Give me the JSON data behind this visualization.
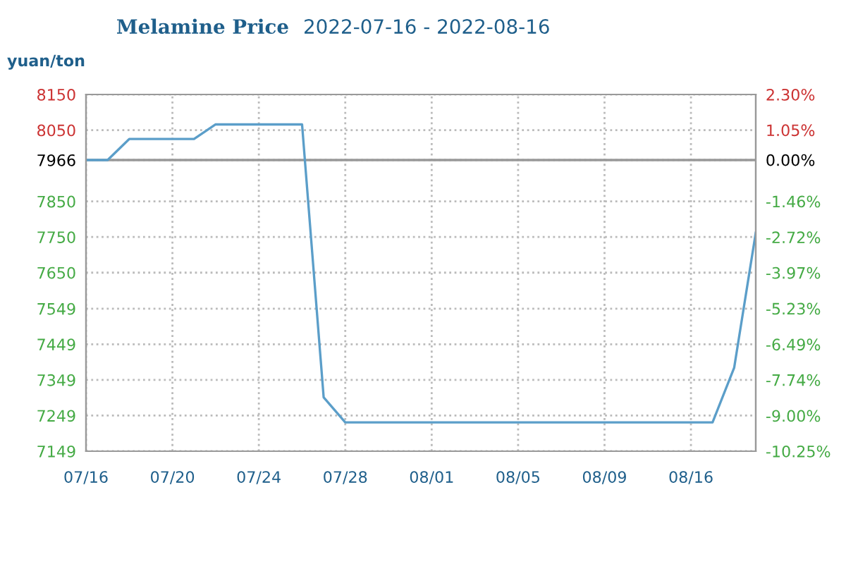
{
  "chart_data": {
    "type": "line",
    "title": "Melamine Price",
    "subtitle": "2022-07-16 - 2022-08-16",
    "ylabel": "yuan/ton",
    "categories": [
      "07/16",
      null,
      null,
      null,
      "07/20",
      null,
      null,
      null,
      "07/24",
      null,
      null,
      null,
      "07/28",
      null,
      null,
      null,
      "08/01",
      null,
      null,
      null,
      "08/05",
      null,
      null,
      null,
      "08/09",
      null,
      null,
      null,
      "08/16",
      null,
      null,
      null
    ],
    "series": [
      {
        "color": "#5b9ec9",
        "values": [
          7966,
          7966,
          8025,
          8025,
          8025,
          8025,
          8066,
          8066,
          8066,
          8066,
          8066,
          7300,
          7230,
          7230,
          7230,
          7230,
          7230,
          7230,
          7230,
          7230,
          7230,
          7230,
          7230,
          7230,
          7230,
          7230,
          7230,
          7230,
          7230,
          7230,
          7383,
          7762
        ]
      }
    ],
    "ylim": [
      7149,
      8150
    ],
    "yticks": [
      7149,
      7249,
      7349,
      7449,
      7549,
      7650,
      7750,
      7850,
      7966,
      8050,
      8150
    ],
    "y2lim": [
      -10.25,
      2.3
    ],
    "y2ticks": [
      {
        "value": -10.25,
        "label": "-10.25%"
      },
      {
        "value": -9.0,
        "label": "-9.00%"
      },
      {
        "value": -7.74,
        "label": "-7.74%"
      },
      {
        "value": -6.49,
        "label": "-6.49%"
      },
      {
        "value": -5.23,
        "label": "-5.23%"
      },
      {
        "value": -3.97,
        "label": "-3.97%"
      },
      {
        "value": -2.72,
        "label": "-2.72%"
      },
      {
        "value": -1.46,
        "label": "-1.46%"
      },
      {
        "value": 0,
        "label": "0.00%"
      },
      {
        "value": 1.05,
        "label": "1.05%"
      },
      {
        "value": 2.3,
        "label": "2.30%"
      }
    ],
    "ref_lines": [
      {
        "axis": "y",
        "value": 7966,
        "color": "#999999",
        "line_style": "solid"
      }
    ],
    "grid": true,
    "legend": false,
    "marker": "none",
    "line_style": "solid"
  }
}
